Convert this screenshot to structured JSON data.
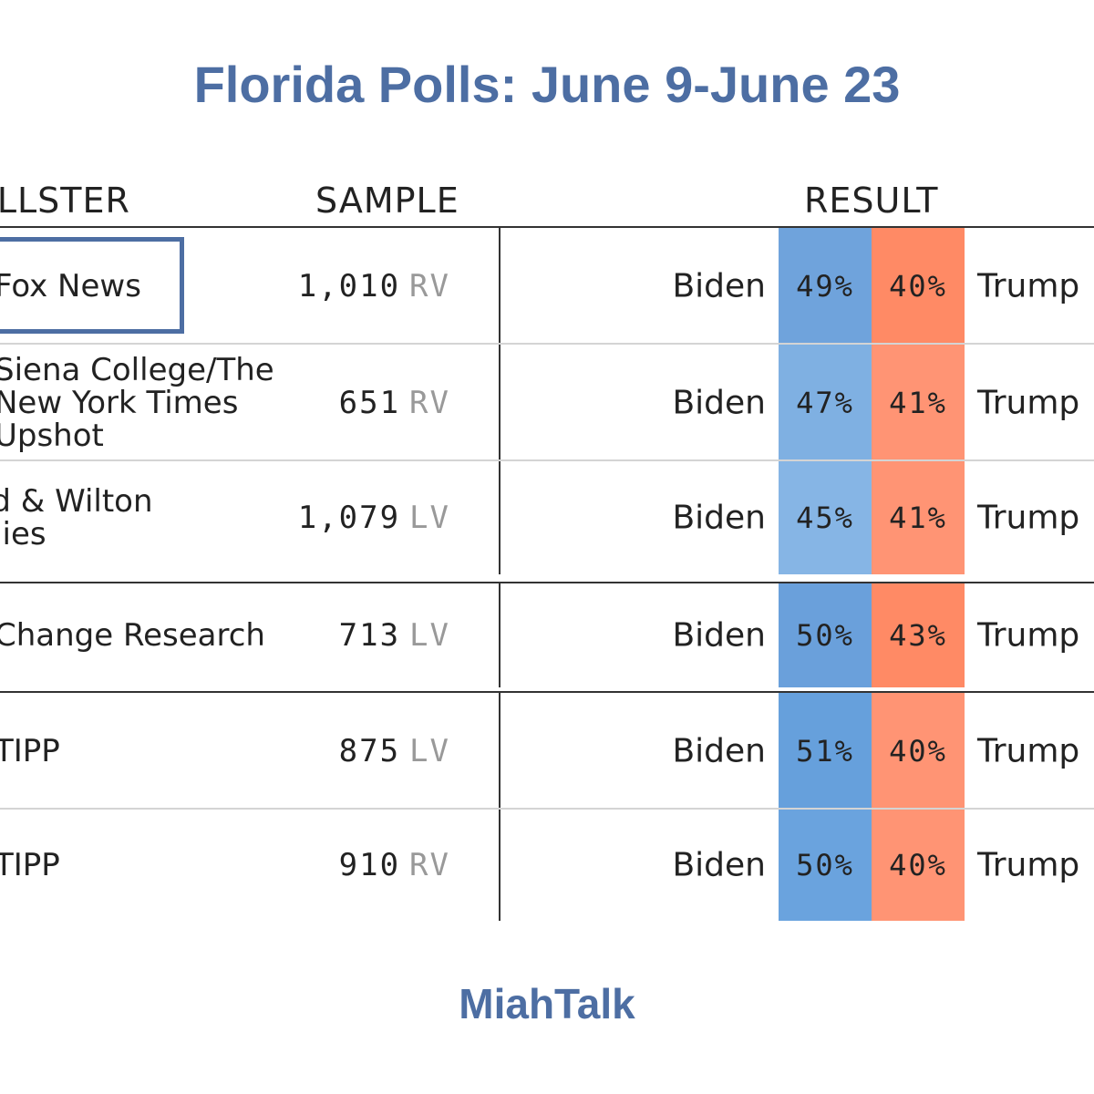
{
  "title": "Florida Polls: June 9-June 23",
  "headers": {
    "pollster": "POLLSTER",
    "sample": "SAMPLE",
    "result": "RESULT"
  },
  "rows": [
    {
      "pollster": "Fox News",
      "sample": "1,010",
      "sample_type": "RV",
      "dem": "Biden",
      "dem_pct": "49%",
      "rep_pct": "40%",
      "rep": "Trump",
      "dem_color": "#6fa3dc",
      "rep_color": "#ff8a65"
    },
    {
      "pollster": "Siena College/The\nNew York Times\nUpshot",
      "sample": "651",
      "sample_type": "RV",
      "dem": "Biden",
      "dem_pct": "47%",
      "rep_pct": "41%",
      "rep": "Trump",
      "dem_color": "#7fb0e2",
      "rep_color": "#ff9474"
    },
    {
      "pollster": "eld & Wilton\negies",
      "sample": "1,079",
      "sample_type": "LV",
      "dem": "Biden",
      "dem_pct": "45%",
      "rep_pct": "41%",
      "rep": "Trump",
      "dem_color": "#86b5e5",
      "rep_color": "#ff9474"
    },
    {
      "pollster": "Change Research",
      "sample": "713",
      "sample_type": "LV",
      "dem": "Biden",
      "dem_pct": "50%",
      "rep_pct": "43%",
      "rep": "Trump",
      "dem_color": "#6aa0db",
      "rep_color": "#ff8a65"
    },
    {
      "pollster": "TIPP",
      "sample": "875",
      "sample_type": "LV",
      "dem": "Biden",
      "dem_pct": "51%",
      "rep_pct": "40%",
      "rep": "Trump",
      "dem_color": "#66a0dc",
      "rep_color": "#ff9474"
    },
    {
      "pollster": "TIPP",
      "sample": "910",
      "sample_type": "RV",
      "dem": "Biden",
      "dem_pct": "50%",
      "rep_pct": "40%",
      "rep": "Trump",
      "dem_color": "#6aa3de",
      "rep_color": "#ff9474"
    }
  ],
  "footer": "MiahTalk",
  "colors": {
    "accent": "#4d6ea3"
  }
}
